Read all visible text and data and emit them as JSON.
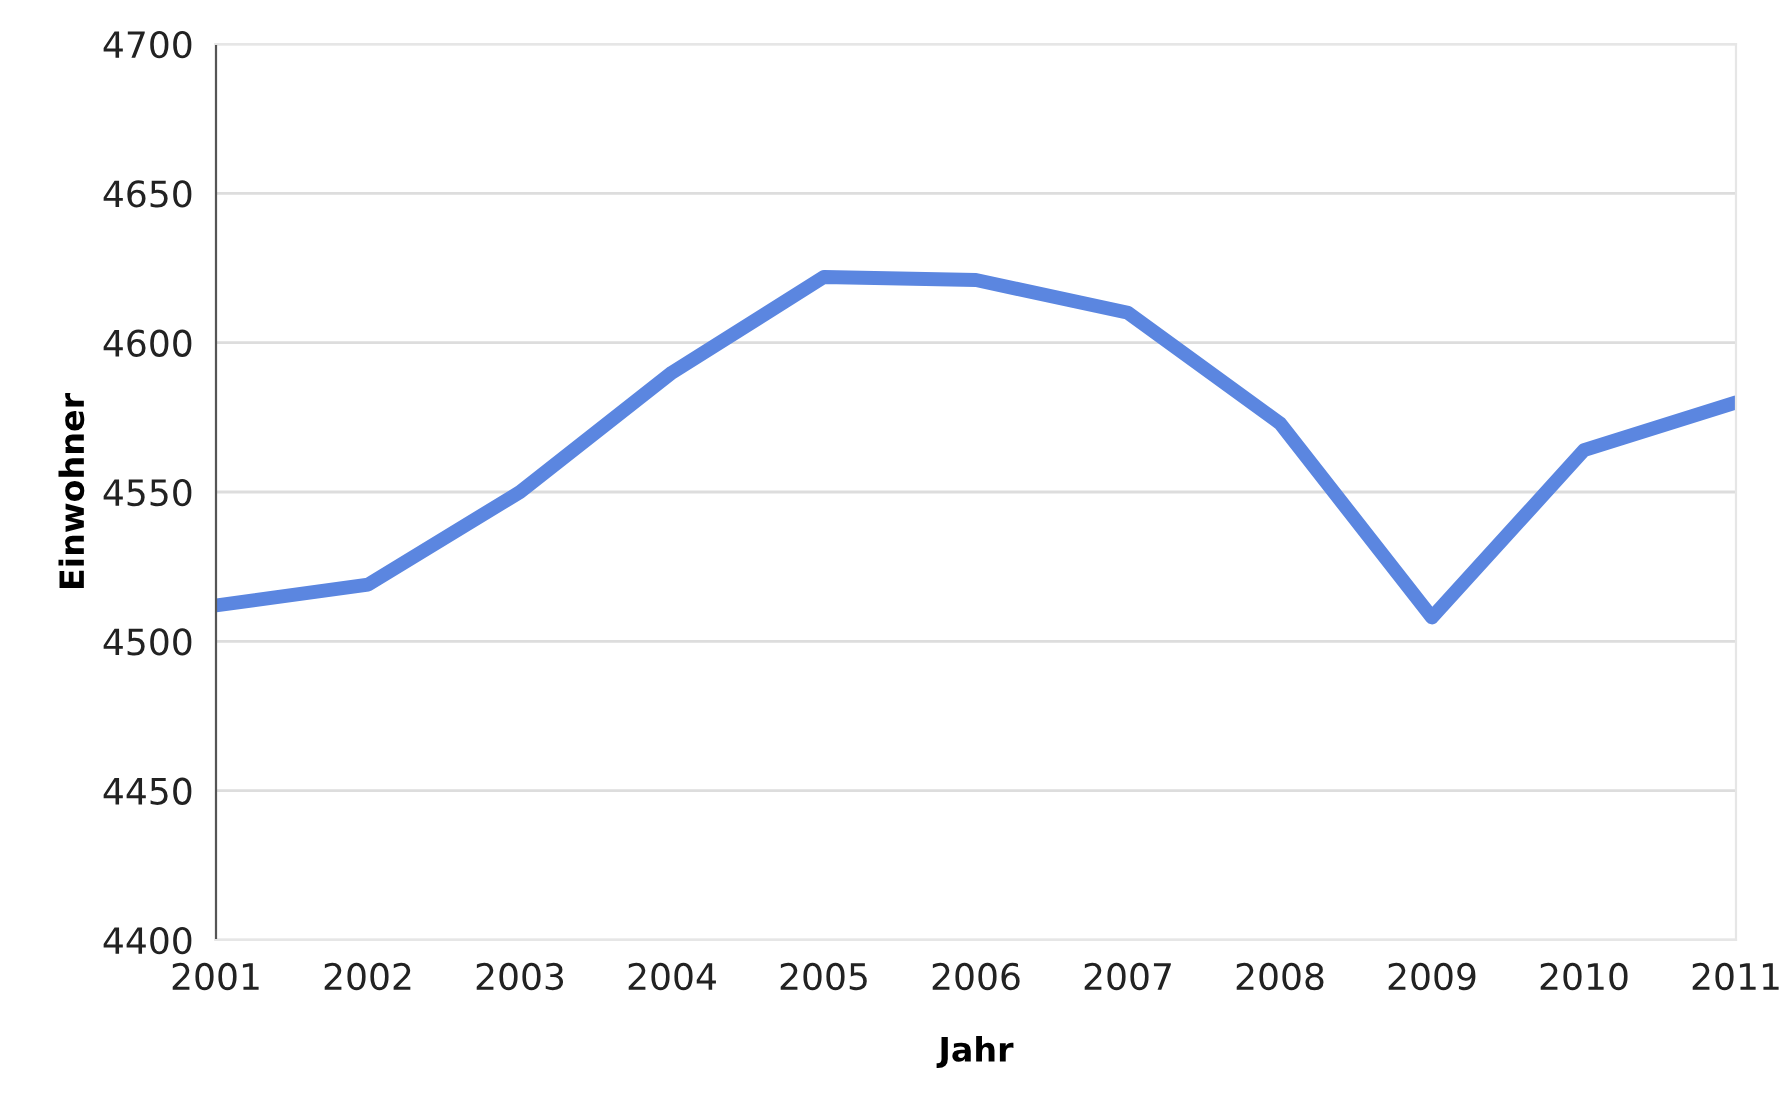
{
  "chart_data": {
    "type": "line",
    "xlabel": "Jahr",
    "ylabel": "Einwohner",
    "x": [
      2001,
      2002,
      2003,
      2004,
      2005,
      2006,
      2007,
      2008,
      2009,
      2010,
      2011
    ],
    "series": [
      {
        "color": "#5b86e0",
        "values": [
          4512,
          4519,
          4550,
          4590,
          4622,
          4621,
          4610,
          4573,
          4508,
          4564,
          4580
        ]
      }
    ],
    "xlim": [
      2001,
      2011
    ],
    "xticks": [
      2001,
      2002,
      2003,
      2004,
      2005,
      2006,
      2007,
      2008,
      2009,
      2010,
      2011
    ],
    "ylim": [
      4400,
      4700
    ],
    "yticks": [
      4400,
      4450,
      4500,
      4550,
      4600,
      4650,
      4700
    ],
    "grid": "y",
    "legend": false
  }
}
